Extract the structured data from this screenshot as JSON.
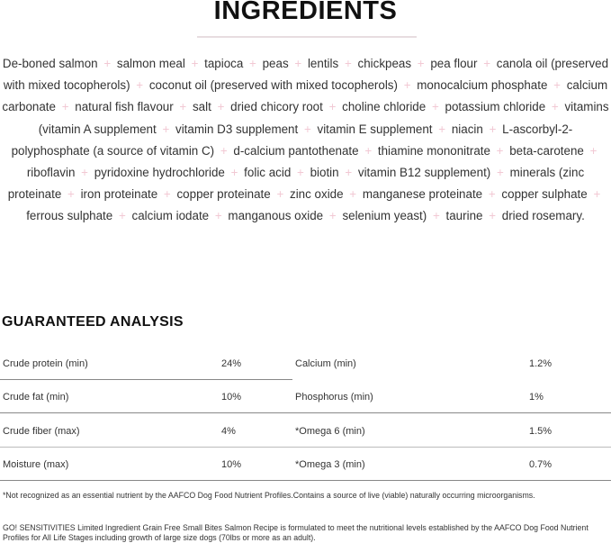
{
  "ingredients_title": "INGREDIENTS",
  "separator": "+",
  "ingredients": [
    "De-boned salmon",
    "salmon meal",
    "tapioca",
    "peas",
    "lentils",
    "chickpeas",
    "pea flour",
    "canola oil (preserved with mixed tocopherols)",
    "coconut oil (preserved with mixed tocopherols)",
    "monocalcium phosphate",
    "calcium carbonate",
    "natural fish flavour",
    "salt",
    "dried chicory root",
    "choline chloride",
    "potassium chloride",
    "vitamins (vitamin A supplement",
    "vitamin D3 supplement",
    "vitamin E supplement",
    "niacin",
    "L-ascorbyl-2-polyphosphate (a source of vitamin C)",
    "d-calcium pantothenate",
    "thiamine mononitrate",
    "beta-carotene",
    "riboflavin",
    "pyridoxine hydrochloride",
    "folic acid",
    "biotin",
    "vitamin B12 supplement)",
    "minerals (zinc proteinate",
    "iron proteinate",
    "copper proteinate",
    "zinc oxide",
    "manganese proteinate",
    "copper sulphate",
    "ferrous sulphate",
    "calcium iodate",
    "manganous oxide",
    "selenium yeast)",
    "taurine",
    "dried rosemary."
  ],
  "analysis_title": "GUARANTEED ANALYSIS",
  "analysis": [
    {
      "left_label": "Crude protein (min)",
      "left_value": "24%",
      "right_label": "Calcium (min)",
      "right_value": "1.2%"
    },
    {
      "left_label": "Crude fat (min)",
      "left_value": "10%",
      "right_label": "Phosphorus (min)",
      "right_value": "1%"
    },
    {
      "left_label": "Crude fiber (max)",
      "left_value": "4%",
      "right_label": "*Omega 6 (min)",
      "right_value": "1.5%"
    },
    {
      "left_label": "Moisture (max)",
      "left_value": "10%",
      "right_label": "*Omega 3 (min)",
      "right_value": "0.7%"
    }
  ],
  "footnote": "*Not recognized as an essential nutrient by the AAFCO Dog Food Nutrient Profiles.Contains a source of live (viable) naturally occurring microorganisms.",
  "statement": "GO! SENSITIVITIES Limited Ingredient Grain Free Small Bites Salmon Recipe is formulated to meet the nutritional levels established by the AAFCO Dog Food Nutrient Profiles for All Life Stages including growth of large size dogs (70lbs or more as an adult)."
}
